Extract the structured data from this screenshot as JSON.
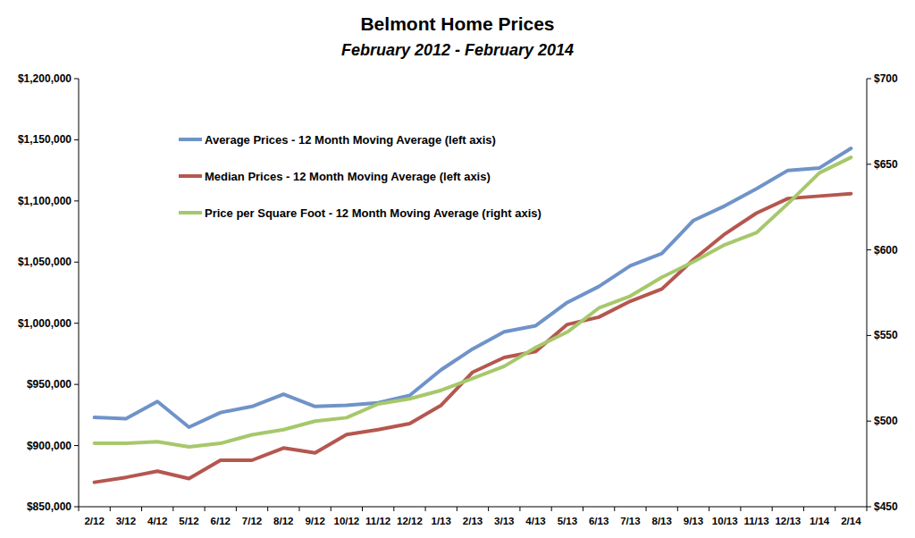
{
  "chart_data": {
    "type": "line",
    "title": "Belmont Home Prices",
    "subtitle": "February 2012 - February 2014",
    "categories": [
      "2/12",
      "3/12",
      "4/12",
      "5/12",
      "6/12",
      "7/12",
      "8/12",
      "9/12",
      "10/12",
      "11/12",
      "12/12",
      "1/13",
      "2/13",
      "3/13",
      "4/13",
      "5/13",
      "6/13",
      "7/13",
      "8/13",
      "9/13",
      "10/13",
      "11/13",
      "12/13",
      "1/14",
      "2/14"
    ],
    "series": [
      {
        "name": "Average Prices - 12 Month Moving Average (left axis)",
        "color": "#6f93c9",
        "values": [
          923000,
          922000,
          936000,
          915000,
          927000,
          932000,
          942000,
          932000,
          933000,
          935000,
          941000,
          962000,
          979000,
          993000,
          998000,
          1017000,
          1030000,
          1047000,
          1057000,
          1084000,
          1096000,
          1110000,
          1125000,
          1127000,
          1143000
        ]
      },
      {
        "name": "Median Prices - 12 Month Moving Average (left axis)",
        "color": "#b5574f",
        "values": [
          870000,
          874000,
          879000,
          873000,
          888000,
          888000,
          898000,
          894000,
          909000,
          913000,
          918000,
          933000,
          960000,
          972000,
          977000,
          999000,
          1005000,
          1018000,
          1028000,
          1052000,
          1073000,
          1090000,
          1102000,
          1104000,
          1106000
        ]
      },
      {
        "name": "Price per Square Foot - 12 Month Moving Average (right axis)",
        "color": "#a6c86b",
        "axis": "y2",
        "values": [
          487,
          487,
          488,
          485,
          487,
          492,
          495,
          500,
          502,
          510,
          513,
          518,
          525,
          532,
          543,
          552,
          566,
          573,
          584,
          593,
          603,
          610,
          627,
          645,
          654
        ]
      }
    ],
    "ylim": [
      850000,
      1200000
    ],
    "yticks": [
      {
        "value": 850000,
        "label": "$850,000"
      },
      {
        "value": 900000,
        "label": "$900,000"
      },
      {
        "value": 950000,
        "label": "$950,000"
      },
      {
        "value": 1000000,
        "label": "$1,000,000"
      },
      {
        "value": 1050000,
        "label": "$1,050,000"
      },
      {
        "value": 1100000,
        "label": "$1,100,000"
      },
      {
        "value": 1150000,
        "label": "$1,150,000"
      },
      {
        "value": 1200000,
        "label": "$1,200,000"
      }
    ],
    "y2lim": [
      450,
      700
    ],
    "y2ticks": [
      {
        "value": 450,
        "label": "$450"
      },
      {
        "value": 500,
        "label": "$500"
      },
      {
        "value": 550,
        "label": "$550"
      },
      {
        "value": 600,
        "label": "$600"
      },
      {
        "value": 650,
        "label": "$650"
      },
      {
        "value": 700,
        "label": "$700"
      }
    ],
    "legend": "upper left",
    "grid": false
  }
}
